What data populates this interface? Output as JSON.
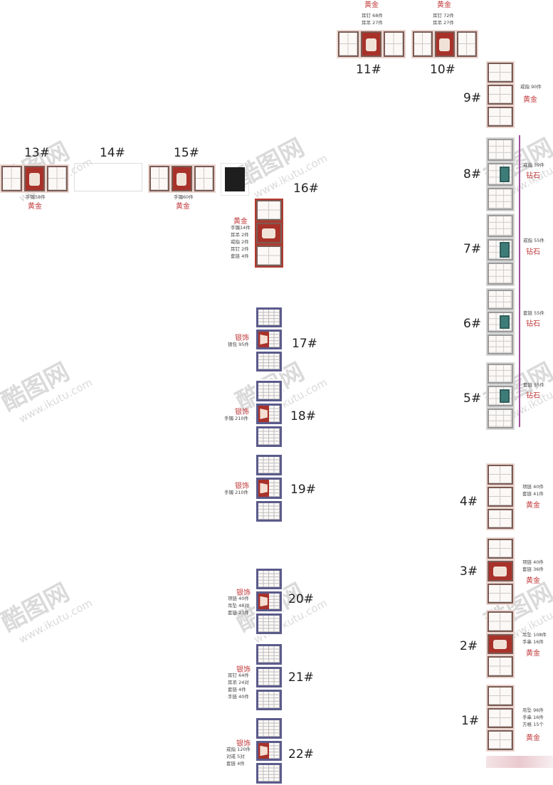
{
  "units": {
    "u11": {
      "number": "11#",
      "category": "黄金",
      "items": [
        "耳钉 68件",
        "耳吊 27件"
      ]
    },
    "u10": {
      "number": "10#",
      "category": "黄金",
      "items": [
        "耳钉 72件",
        "耳吊 27件"
      ]
    },
    "u9": {
      "number": "9#",
      "category": "黄金",
      "items": [
        "戒指 90件"
      ]
    },
    "u13": {
      "number": "13#",
      "category": "黄金",
      "items": [
        "手镯58件"
      ]
    },
    "u14": {
      "number": "14#"
    },
    "u15": {
      "number": "15#",
      "category": "黄金",
      "items": [
        "手镯60件"
      ]
    },
    "u16": {
      "number": "16#",
      "category": "黄金",
      "items": [
        "手镯14件",
        "耳吊  2件",
        "戒指  2件",
        "耳钉  2件",
        "套链  4件"
      ]
    },
    "u8": {
      "number": "8#",
      "category": "钻石",
      "items": [
        "戒指 59件"
      ]
    },
    "u7": {
      "number": "7#",
      "category": "钻石",
      "items": [
        "戒指 55件"
      ]
    },
    "u6": {
      "number": "6#",
      "category": "钻石",
      "items": [
        "套链 55件"
      ]
    },
    "u5": {
      "number": "5#",
      "category": "钻石",
      "items": [
        "套链 55件"
      ]
    },
    "u4": {
      "number": "4#",
      "category": "黄金",
      "items": [
        "项链 40件",
        "套链 41件"
      ]
    },
    "u3": {
      "number": "3#",
      "category": "黄金",
      "items": [
        "项链 40件",
        "套链 36件"
      ]
    },
    "u2": {
      "number": "2#",
      "category": "黄金",
      "items": [
        "吊坠 108件",
        "手串  16件"
      ]
    },
    "u1": {
      "number": "1#",
      "category": "黄金",
      "items": [
        "吊坠  96件",
        "手串  16件",
        "方格  15个"
      ]
    },
    "u17": {
      "number": "17#",
      "category": "银饰",
      "items": [
        "银包 95件"
      ]
    },
    "u18": {
      "number": "18#",
      "category": "银饰",
      "items": [
        "手镯 210件"
      ]
    },
    "u19": {
      "number": "19#",
      "category": "银饰",
      "items": [
        "手镯 210件"
      ]
    },
    "u20": {
      "number": "20#",
      "category": "银饰",
      "items": [
        "项链 40件",
        "吊坠 48对",
        "套链 23件"
      ]
    },
    "u21": {
      "number": "21#",
      "category": "银饰",
      "items": [
        "耳钉 64件",
        "耳吊 24对",
        "套链  4件",
        "手链 40件"
      ]
    },
    "u22": {
      "number": "22#",
      "category": "银饰",
      "items": [
        "戒指 120件",
        "对戒 5对",
        "套链 4件"
      ]
    }
  },
  "colors": {
    "gold_text": "#c0393b",
    "diamond_accent": "#3e7c78",
    "silver_frame": "#5b5b8c",
    "divider": "#a0509a"
  },
  "watermark": {
    "logo": "酷图网",
    "url": "www.ikutu.com"
  }
}
